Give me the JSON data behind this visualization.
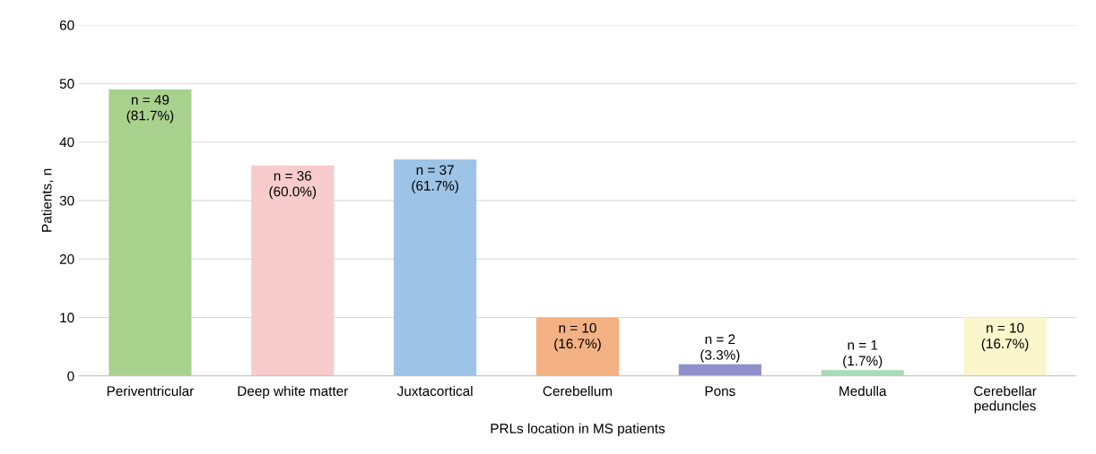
{
  "chart_data": {
    "type": "bar",
    "xlabel": "PRLs location in MS patients",
    "ylabel": "Patients, n",
    "categories": [
      "Periventricular",
      "Deep white matter",
      "Juxtacortical",
      "Cerebellum",
      "Pons",
      "Medulla",
      "Cerebellar\npeduncles"
    ],
    "values": [
      49,
      36,
      37,
      10,
      2,
      1,
      10
    ],
    "colors": [
      "#a9d18e",
      "#f8cbcc",
      "#9dc3e6",
      "#f4b183",
      "#8f8fcc",
      "#a9dbb8",
      "#fbf6cc"
    ],
    "value_labels": [
      "n = 49\n(81.7%)",
      "n = 36\n(60.0%)",
      "n = 37\n(61.7%)",
      "n = 10\n(16.7%)",
      "n = 2\n(3.3%)",
      "n = 1\n(1.7%)",
      "n = 10\n(16.7%)"
    ],
    "ylim": [
      0,
      60
    ],
    "yticks": [
      0,
      10,
      20,
      30,
      40,
      50,
      60
    ],
    "grid": "y",
    "legend": false
  }
}
